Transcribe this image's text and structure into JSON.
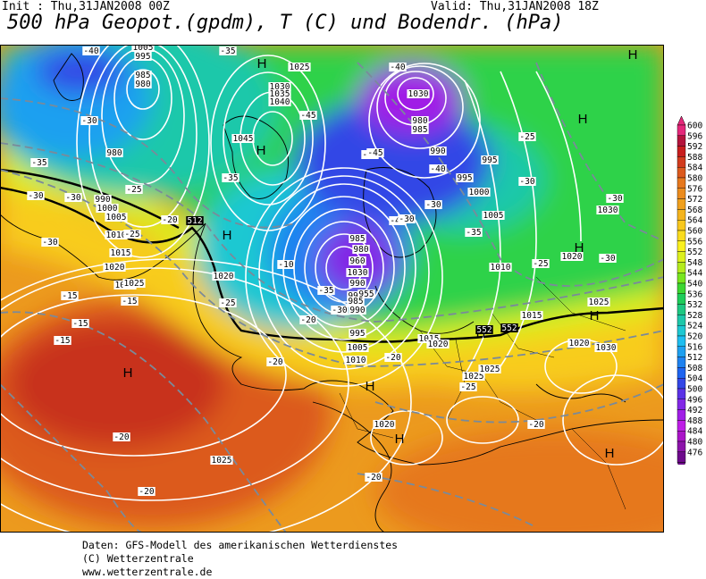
{
  "header": {
    "init": "Init : Thu,31JAN2008 00Z",
    "valid": "Valid: Thu,31JAN2008 18Z",
    "title": "500 hPa Geopot.(gpdm), T (C) und Bodendr. (hPa)"
  },
  "footer": {
    "line1": "Daten: GFS-Modell des amerikanischen Wetterdienstes",
    "line2": "(C) Wetterzentrale",
    "line3": "www.wetterzentrale.de"
  },
  "legend": {
    "labels": [
      "600",
      "596",
      "592",
      "588",
      "584",
      "580",
      "576",
      "572",
      "568",
      "564",
      "560",
      "556",
      "552",
      "548",
      "544",
      "540",
      "536",
      "532",
      "528",
      "524",
      "520",
      "516",
      "512",
      "508",
      "504",
      "500",
      "496",
      "492",
      "488",
      "484",
      "480",
      "476"
    ],
    "colors": [
      "#e4287a",
      "#b4143c",
      "#c81e1e",
      "#d23c1e",
      "#dc5a1e",
      "#e6781e",
      "#ec8c1e",
      "#f0a01e",
      "#f4b41e",
      "#f8c81e",
      "#fadc1e",
      "#faf01e",
      "#dcf01e",
      "#b4eb1e",
      "#78e61e",
      "#3cd732",
      "#1ecd5a",
      "#1ec882",
      "#1ec8aa",
      "#1ec8d2",
      "#1ebef0",
      "#1ea0f0",
      "#1e82f0",
      "#1e64f0",
      "#3246e6",
      "#5a32e6",
      "#8228e6",
      "#a01ee6",
      "#be1ee6",
      "#aa14c8",
      "#8c14aa",
      "#6e0a8c"
    ]
  },
  "map_labels": {
    "highs": [
      "H",
      "H",
      "H",
      "H",
      "H",
      "H",
      "H",
      "H",
      "H",
      "H",
      "H",
      "H"
    ],
    "isobars": [
      "1005",
      "995",
      "985",
      "980",
      "1025",
      "1030",
      "1035",
      "1040",
      "1045",
      "980",
      "990",
      "1000",
      "1005",
      "1010",
      "1015",
      "1020",
      "1025",
      "1030",
      "980",
      "985",
      "990",
      "995",
      "995",
      "1000",
      "1005",
      "1010",
      "1015",
      "1020",
      "1025",
      "1030",
      "990",
      "995",
      "985",
      "980",
      "960",
      "955",
      "985",
      "990",
      "995",
      "1005",
      "1010",
      "1015",
      "1020",
      "1025",
      "1030",
      "1020",
      "1025",
      "1020",
      "1025",
      "1030",
      "1020",
      "1025"
    ],
    "temperatures": [
      "-40",
      "-35",
      "-35",
      "-40",
      "-45",
      "-30",
      "-35",
      "-30",
      "-35",
      "-25",
      "-25",
      "-20",
      "-30",
      "-40",
      "-30",
      "-35",
      "-30",
      "-25",
      "-25",
      "-30",
      "-30",
      "-20",
      "-10",
      "-15",
      "-25",
      "-20",
      "-20",
      "-25",
      "-15",
      "-15",
      "-15",
      "-20",
      "-20",
      "-20",
      "-20",
      "-30",
      "-40",
      "-45",
      "-35",
      "-30",
      "-30"
    ],
    "height_labels": [
      "512",
      "552",
      "552"
    ]
  }
}
